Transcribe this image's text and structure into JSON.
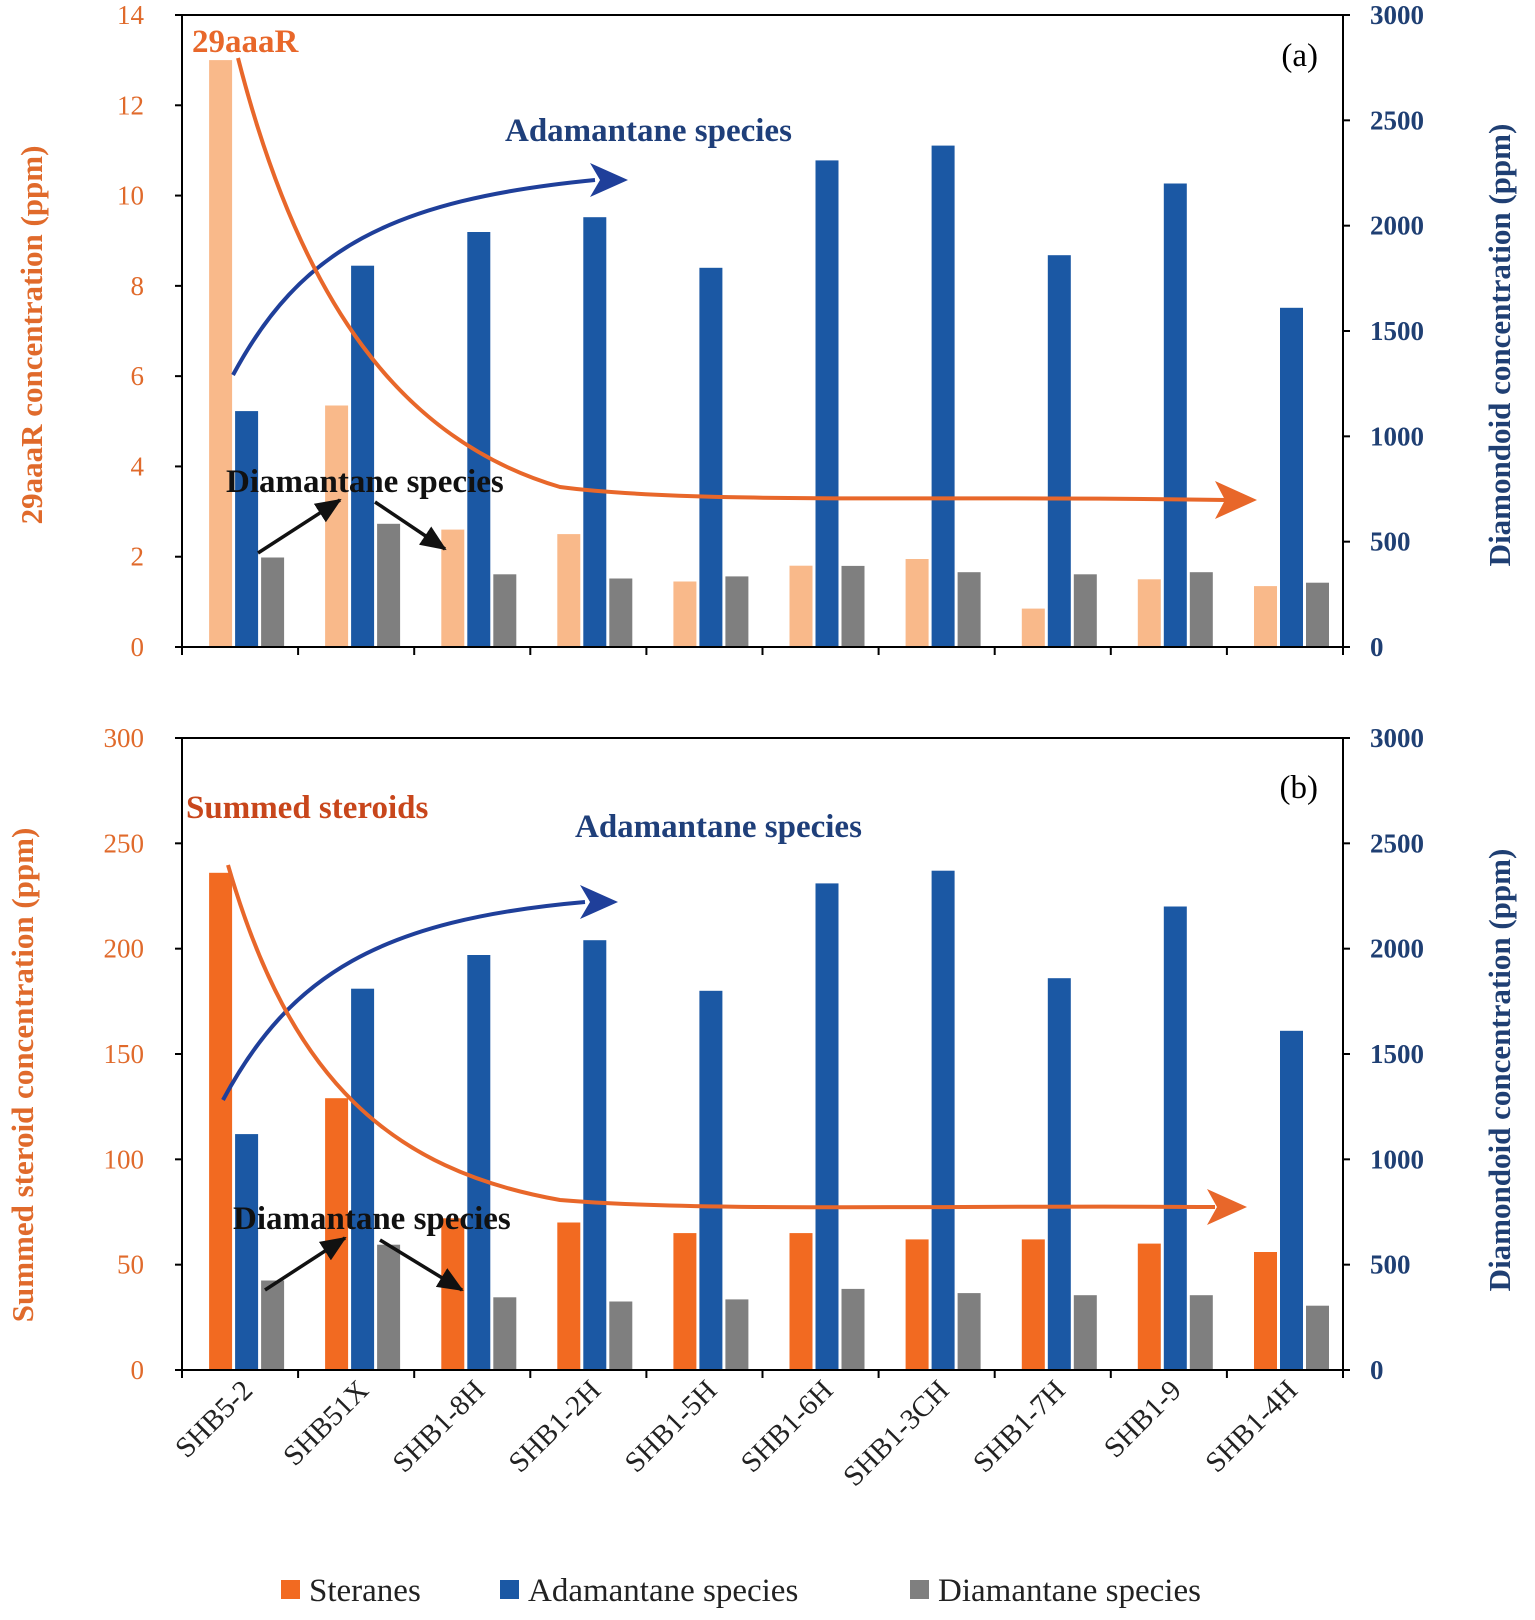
{
  "colors": {
    "steranes_a": "#F9B98A",
    "steranes_b": "#F26A21",
    "adamantane": "#1B58A4",
    "diamantane": "#7F7F7F",
    "left_axis": "#E06A2B",
    "right_axis": "#1F3F73",
    "arrow_blue": "#1F3F9A",
    "arrow_orange": "#E8672A",
    "label_29aaaR": "#E8672A",
    "label_summed": "#C8461B"
  },
  "legend": {
    "steranes": "Steranes",
    "adamantane": "Adamantane species",
    "diamantane": "Diamantane species"
  },
  "chart_data": [
    {
      "type": "bar",
      "panel": "(a)",
      "title": "",
      "categories": [
        "SHB5-2",
        "SHB51X",
        "SHB1-8H",
        "SHB1-2H",
        "SHB1-5H",
        "SHB1-6H",
        "SHB1-3CH",
        "SHB1-7H",
        "SHB1-9",
        "SHB1-4H"
      ],
      "ylabel": "29aaaR concentration (ppm)",
      "ylim": [
        0,
        14
      ],
      "yticks": [
        "0",
        "2",
        "4",
        "6",
        "8",
        "10",
        "12",
        "14"
      ],
      "y2label": "Diamondoid concentration (ppm)",
      "y2lim": [
        0,
        3000
      ],
      "y2ticks": [
        "0",
        "500",
        "1000",
        "1500",
        "2000",
        "2500",
        "3000"
      ],
      "series": [
        {
          "name": "Steranes",
          "axis": "left",
          "values": [
            13.0,
            5.35,
            2.6,
            2.5,
            1.45,
            1.8,
            1.95,
            0.85,
            1.5,
            1.35
          ]
        },
        {
          "name": "Adamantane species",
          "axis": "right",
          "values": [
            1120,
            1810,
            1970,
            2040,
            1800,
            2310,
            2380,
            1860,
            2200,
            1610
          ]
        },
        {
          "name": "Diamantane species",
          "axis": "right",
          "values": [
            425,
            585,
            345,
            325,
            335,
            385,
            355,
            345,
            355,
            305
          ]
        }
      ],
      "annotations": {
        "compound": "29aaaR",
        "adamantane": "Adamantane species",
        "diamantane": "Diamantane species"
      }
    },
    {
      "type": "bar",
      "panel": "(b)",
      "title": "",
      "categories": [
        "SHB5-2",
        "SHB51X",
        "SHB1-8H",
        "SHB1-2H",
        "SHB1-5H",
        "SHB1-6H",
        "SHB1-3CH",
        "SHB1-7H",
        "SHB1-9",
        "SHB1-4H"
      ],
      "ylabel": "Summed steroid concentration (ppm)",
      "ylim": [
        0,
        300
      ],
      "yticks": [
        "0",
        "50",
        "100",
        "150",
        "200",
        "250",
        "300"
      ],
      "y2label": "Diamondoid concentration (ppm)",
      "y2lim": [
        0,
        3000
      ],
      "y2ticks": [
        "0",
        "500",
        "1000",
        "1500",
        "2000",
        "2500",
        "3000"
      ],
      "series": [
        {
          "name": "Steranes",
          "axis": "left",
          "values": [
            236,
            129,
            72,
            70,
            65,
            65,
            62,
            62,
            60,
            56
          ]
        },
        {
          "name": "Adamantane species",
          "axis": "right",
          "values": [
            1120,
            1810,
            1970,
            2040,
            1800,
            2310,
            2370,
            1860,
            2200,
            1610
          ]
        },
        {
          "name": "Diamantane species",
          "axis": "right",
          "values": [
            425,
            595,
            345,
            325,
            335,
            385,
            365,
            355,
            355,
            305
          ]
        }
      ],
      "annotations": {
        "compound": "Summed steroids",
        "adamantane": "Adamantane species",
        "diamantane": "Diamantane species"
      }
    }
  ]
}
